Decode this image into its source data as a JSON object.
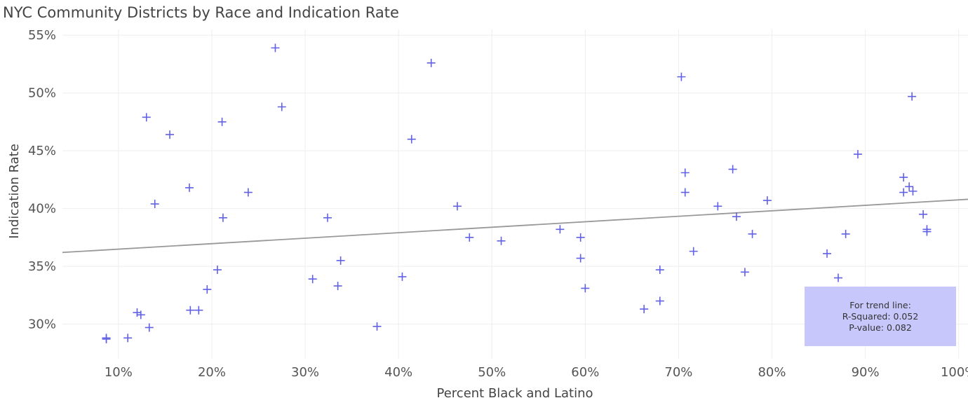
{
  "chart_data": {
    "type": "scatter",
    "title": "NYC Community Districts by Race and Indication Rate",
    "xlabel": "Percent Black and Latino",
    "ylabel": "Indication Rate",
    "xlim": [
      0.04,
      1.01
    ],
    "ylim": [
      0.27,
      0.555
    ],
    "x_ticks": [
      0.1,
      0.2,
      0.3,
      0.4,
      0.5,
      0.6,
      0.7,
      0.8,
      0.9,
      1.0
    ],
    "x_tick_labels": [
      "10%",
      "20%",
      "30%",
      "40%",
      "50%",
      "60%",
      "70%",
      "80%",
      "90%",
      "100%"
    ],
    "y_ticks": [
      0.3,
      0.35,
      0.4,
      0.45,
      0.5,
      0.55
    ],
    "y_tick_labels": [
      "30%",
      "35%",
      "40%",
      "45%",
      "50%",
      "55%"
    ],
    "grid": true,
    "marker": "cross",
    "marker_color": "#6161e6",
    "trend_line": {
      "x": [
        0.04,
        1.01
      ],
      "y": [
        0.362,
        0.408
      ],
      "color": "#999999"
    },
    "annotation": {
      "lines": [
        "For trend line:",
        "R-Squared: 0.052",
        "P-value: 0.082"
      ],
      "background": "#c7c7fb"
    },
    "points": [
      {
        "x": 0.087,
        "y": 0.288
      },
      {
        "x": 0.087,
        "y": 0.287
      },
      {
        "x": 0.11,
        "y": 0.288
      },
      {
        "x": 0.12,
        "y": 0.31
      },
      {
        "x": 0.124,
        "y": 0.308
      },
      {
        "x": 0.13,
        "y": 0.479
      },
      {
        "x": 0.133,
        "y": 0.297
      },
      {
        "x": 0.139,
        "y": 0.404
      },
      {
        "x": 0.155,
        "y": 0.464
      },
      {
        "x": 0.176,
        "y": 0.418
      },
      {
        "x": 0.177,
        "y": 0.312
      },
      {
        "x": 0.186,
        "y": 0.312
      },
      {
        "x": 0.195,
        "y": 0.33
      },
      {
        "x": 0.206,
        "y": 0.347
      },
      {
        "x": 0.211,
        "y": 0.475
      },
      {
        "x": 0.212,
        "y": 0.392
      },
      {
        "x": 0.239,
        "y": 0.414
      },
      {
        "x": 0.268,
        "y": 0.539
      },
      {
        "x": 0.275,
        "y": 0.488
      },
      {
        "x": 0.308,
        "y": 0.339
      },
      {
        "x": 0.324,
        "y": 0.392
      },
      {
        "x": 0.335,
        "y": 0.333
      },
      {
        "x": 0.338,
        "y": 0.355
      },
      {
        "x": 0.377,
        "y": 0.298
      },
      {
        "x": 0.404,
        "y": 0.341
      },
      {
        "x": 0.414,
        "y": 0.46
      },
      {
        "x": 0.435,
        "y": 0.526
      },
      {
        "x": 0.463,
        "y": 0.402
      },
      {
        "x": 0.476,
        "y": 0.375
      },
      {
        "x": 0.51,
        "y": 0.372
      },
      {
        "x": 0.573,
        "y": 0.382
      },
      {
        "x": 0.595,
        "y": 0.375
      },
      {
        "x": 0.595,
        "y": 0.357
      },
      {
        "x": 0.6,
        "y": 0.331
      },
      {
        "x": 0.663,
        "y": 0.313
      },
      {
        "x": 0.68,
        "y": 0.347
      },
      {
        "x": 0.68,
        "y": 0.32
      },
      {
        "x": 0.703,
        "y": 0.514
      },
      {
        "x": 0.707,
        "y": 0.431
      },
      {
        "x": 0.707,
        "y": 0.414
      },
      {
        "x": 0.716,
        "y": 0.363
      },
      {
        "x": 0.742,
        "y": 0.402
      },
      {
        "x": 0.758,
        "y": 0.434
      },
      {
        "x": 0.762,
        "y": 0.393
      },
      {
        "x": 0.771,
        "y": 0.345
      },
      {
        "x": 0.779,
        "y": 0.378
      },
      {
        "x": 0.795,
        "y": 0.407
      },
      {
        "x": 0.859,
        "y": 0.361
      },
      {
        "x": 0.871,
        "y": 0.34
      },
      {
        "x": 0.879,
        "y": 0.378
      },
      {
        "x": 0.892,
        "y": 0.447
      },
      {
        "x": 0.941,
        "y": 0.427
      },
      {
        "x": 0.941,
        "y": 0.414
      },
      {
        "x": 0.947,
        "y": 0.419
      },
      {
        "x": 0.95,
        "y": 0.497
      },
      {
        "x": 0.951,
        "y": 0.415
      },
      {
        "x": 0.962,
        "y": 0.395
      },
      {
        "x": 0.966,
        "y": 0.382
      },
      {
        "x": 0.966,
        "y": 0.38
      }
    ]
  }
}
